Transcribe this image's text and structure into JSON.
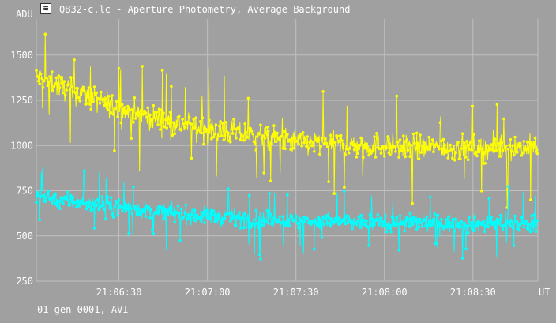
{
  "window": {
    "title": "QB32-c.lc - Aperture Photometry, Average Background",
    "icon": "app-icon"
  },
  "footer": {
    "status": "01 gen 0001, AVI"
  },
  "colors": {
    "background": "#a0a0a0",
    "grid": "#c0c0c0",
    "text": "#ffffff",
    "series_1": "#ffff00",
    "series_2": "#00ffff"
  },
  "chart_data": {
    "type": "line",
    "ylabel": "ADU",
    "xlabel": "UT",
    "ylim": [
      250,
      1700
    ],
    "y_ticks": [
      250,
      500,
      750,
      1000,
      1250,
      1500
    ],
    "x_ticks": [
      "21:06:30",
      "21:07:00",
      "21:07:30",
      "21:08:00",
      "21:08:30"
    ],
    "xlim": [
      "21:06:02",
      "21:08:52"
    ],
    "grid": true,
    "series": [
      {
        "color": "#ffff00",
        "x": [
          "21:06:02",
          "21:06:10",
          "21:06:20",
          "21:06:30",
          "21:06:40",
          "21:06:50",
          "21:07:00",
          "21:07:10",
          "21:07:20",
          "21:07:30",
          "21:07:40",
          "21:07:50",
          "21:08:00",
          "21:08:10",
          "21:08:20",
          "21:08:30",
          "21:08:40",
          "21:08:52"
        ],
        "values": [
          1380,
          1330,
          1270,
          1200,
          1160,
          1120,
          1090,
          1070,
          1040,
          1020,
          1010,
          1000,
          1000,
          990,
          990,
          985,
          990,
          990
        ],
        "spread": 130
      },
      {
        "color": "#00ffff",
        "x": [
          "21:06:02",
          "21:06:10",
          "21:06:20",
          "21:06:30",
          "21:06:40",
          "21:06:50",
          "21:07:00",
          "21:07:10",
          "21:07:20",
          "21:07:30",
          "21:07:40",
          "21:07:50",
          "21:08:00",
          "21:08:10",
          "21:08:20",
          "21:08:30",
          "21:08:40",
          "21:08:52"
        ],
        "values": [
          730,
          700,
          680,
          660,
          640,
          620,
          610,
          600,
          590,
          585,
          580,
          575,
          575,
          570,
          570,
          565,
          570,
          570
        ],
        "spread": 90
      }
    ]
  }
}
